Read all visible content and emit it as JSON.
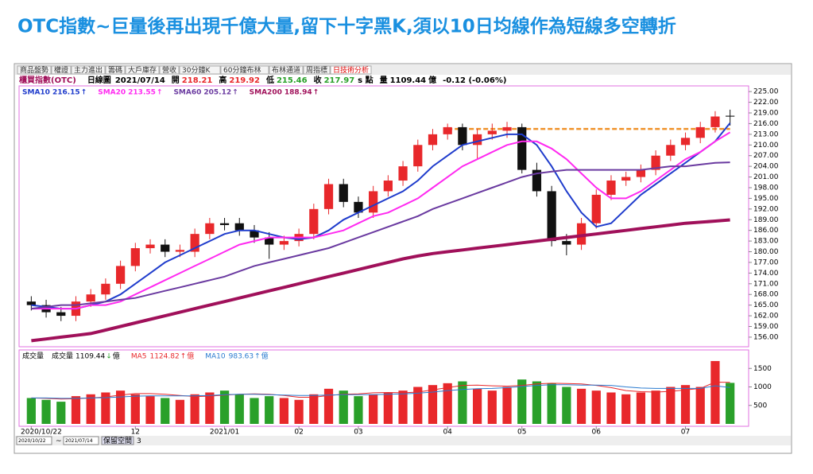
{
  "title": "OTC指數~巨量後再出現千億大量,留下十字黑K,須以10日均線作為短線多空轉折",
  "toolbar": {
    "tabs": [
      "商品盤勢",
      "權證",
      "主力進出",
      "籌碼",
      "大戶庫存",
      "營收",
      "30分鐘K",
      "60分鐘布林",
      "布林通道",
      "周指標",
      "日技術分析"
    ]
  },
  "chart_data": {
    "type": "candlestick",
    "info": {
      "name": "櫃買指數(OTC)",
      "period": "日線圖",
      "date": "2021/07/14",
      "open_label": "開",
      "high_label": "高",
      "low_label": "低",
      "close_label": "收",
      "unit": "s 點",
      "volume_label": "量",
      "volume_unit": "億",
      "change": "-0.12 (-0.06%)"
    },
    "categories": [
      "2020/10/22",
      null,
      null,
      null,
      null,
      null,
      null,
      "12",
      null,
      null,
      null,
      null,
      null,
      "2021/01",
      null,
      null,
      null,
      null,
      "02",
      null,
      null,
      null,
      "03",
      null,
      null,
      null,
      null,
      null,
      "04",
      null,
      null,
      null,
      null,
      "05",
      null,
      null,
      null,
      null,
      "06",
      null,
      null,
      null,
      null,
      null,
      "07",
      null,
      null,
      null
    ],
    "open": [
      166,
      165,
      163,
      162,
      166,
      168,
      171,
      176,
      181,
      182,
      180,
      180,
      185,
      188,
      188,
      186,
      184,
      182,
      183,
      185,
      192,
      199,
      194,
      191,
      197,
      200,
      204,
      210,
      213,
      215,
      210,
      213,
      214,
      215,
      203,
      197,
      183,
      182,
      188,
      196,
      200,
      201,
      203,
      207,
      210,
      212,
      215,
      218.21
    ],
    "high": [
      167.5,
      166.5,
      164.5,
      167.5,
      169.5,
      172.5,
      177.5,
      182.5,
      183.5,
      183.5,
      182,
      186.5,
      189.5,
      189.5,
      189.5,
      187.5,
      185.5,
      184.5,
      186.5,
      193.5,
      200.5,
      200.5,
      195.5,
      198.5,
      201.5,
      205.5,
      211.5,
      214.5,
      216,
      216,
      214.5,
      216,
      216.5,
      216,
      205,
      198.5,
      185,
      189.5,
      197.5,
      201.5,
      202.5,
      204.5,
      208.5,
      211.5,
      213.5,
      216.5,
      219.5,
      219.92
    ],
    "low": [
      163.5,
      161.5,
      160.5,
      160.5,
      164.5,
      166.5,
      169.5,
      174.5,
      179.5,
      178.5,
      178.5,
      178.5,
      183.5,
      186,
      184.5,
      182.5,
      178,
      180.5,
      181.5,
      183.5,
      190.5,
      192.5,
      189.5,
      189.5,
      195.5,
      198.5,
      202.5,
      208.5,
      211.5,
      208.5,
      206,
      211.5,
      212,
      202,
      195.5,
      181.5,
      179,
      180.5,
      186.5,
      194.5,
      198.5,
      199.5,
      201.5,
      205.5,
      208.5,
      210.5,
      213.5,
      215.46
    ],
    "close": [
      165,
      163,
      162,
      166,
      168,
      171,
      176,
      181,
      182,
      180,
      180.5,
      185,
      188,
      187.5,
      186,
      184,
      182,
      183,
      185,
      192,
      199,
      194,
      191,
      197,
      200,
      204,
      210,
      213,
      215,
      210,
      213,
      214,
      215,
      203,
      197,
      183,
      182,
      188,
      196,
      200,
      201,
      203,
      207,
      210,
      212,
      215,
      218,
      217.97
    ],
    "up_color": "#e8282b",
    "down_color": "#111111",
    "ylim": [
      153.3,
      226.6
    ],
    "yticks": [
      {
        "value": 225,
        "label": "225.00"
      },
      {
        "value": 222,
        "label": "222.00"
      },
      {
        "value": 219,
        "label": "219.00"
      },
      {
        "value": 216,
        "label": "216.00"
      },
      {
        "value": 213,
        "label": "213.00"
      },
      {
        "value": 210,
        "label": "210.00"
      },
      {
        "value": 207,
        "label": "207.00"
      },
      {
        "value": 204,
        "label": "204.00"
      },
      {
        "value": 201,
        "label": "201.00"
      },
      {
        "value": 198,
        "label": "198.00"
      },
      {
        "value": 195,
        "label": "195.00"
      },
      {
        "value": 192,
        "label": "192.00"
      },
      {
        "value": 189,
        "label": "189.00"
      },
      {
        "value": 186,
        "label": "186.00"
      },
      {
        "value": 183,
        "label": "183.00"
      },
      {
        "value": 180,
        "label": "180.00"
      },
      {
        "value": 177,
        "label": "177.00"
      },
      {
        "value": 174,
        "label": "174.00"
      },
      {
        "value": 171,
        "label": "171.00"
      },
      {
        "value": 168,
        "label": "168.00"
      },
      {
        "value": 165,
        "label": "165.00"
      },
      {
        "value": 162,
        "label": "162.00"
      },
      {
        "value": 159,
        "label": "159.00"
      },
      {
        "value": 156,
        "label": "156.00"
      }
    ],
    "series": [
      {
        "name": "SMA10",
        "color": "#1f3ccc",
        "arrow": "↑",
        "values": [
          165,
          164.5,
          164,
          164,
          165,
          166,
          168,
          171,
          174,
          177,
          179,
          181,
          183,
          185,
          186,
          186,
          185,
          184,
          183.5,
          184,
          186,
          189,
          191,
          193,
          195,
          197,
          200,
          204,
          207,
          210,
          211,
          212,
          213,
          213,
          210,
          204,
          197,
          191,
          187,
          188,
          192,
          196,
          199,
          202,
          205,
          208,
          211,
          216.15
        ]
      },
      {
        "name": "SMA20",
        "color": "#ff2af0",
        "arrow": "↑",
        "values": [
          164,
          164,
          164,
          164,
          165,
          165,
          166,
          168,
          170,
          172,
          174,
          176,
          178,
          180,
          182,
          183,
          184,
          184,
          184,
          184,
          185,
          186,
          188,
          190,
          191,
          193,
          195,
          198,
          201,
          204,
          206,
          208,
          210,
          211,
          211,
          209,
          206,
          202,
          198,
          195,
          195,
          197,
          200,
          203,
          206,
          208,
          211,
          213.55
        ]
      },
      {
        "name": "SMA60",
        "color": "#6a3aa0",
        "arrow": "↑",
        "values": [
          164,
          164.5,
          165,
          165,
          165.5,
          166,
          166.5,
          167,
          168,
          169,
          170,
          171,
          172,
          173,
          174.5,
          176,
          177,
          178,
          179,
          180,
          181,
          182.5,
          184,
          185.5,
          187,
          188.5,
          190,
          192,
          193.5,
          195,
          196.5,
          198,
          199.5,
          201,
          202,
          202.5,
          203,
          203,
          203,
          203,
          203,
          203,
          203.5,
          204,
          204,
          204.5,
          205,
          205.12
        ]
      },
      {
        "name": "SMA200",
        "color": "#a0105a",
        "arrow": "↑",
        "values": [
          155,
          155.5,
          156,
          156.5,
          157,
          158,
          159,
          160,
          161,
          162,
          163,
          164,
          165,
          166,
          167,
          168,
          169,
          170,
          171,
          172,
          173,
          174,
          175,
          176,
          177,
          178,
          178.8,
          179.5,
          180,
          180.5,
          181,
          181.5,
          182,
          182.5,
          183,
          183.5,
          184,
          184.5,
          185,
          185.5,
          186,
          186.5,
          187,
          187.5,
          188,
          188.3,
          188.6,
          188.94
        ]
      }
    ],
    "resistance": {
      "value": 214.5,
      "from": 28,
      "to": 47,
      "color": "#f0922a"
    },
    "volume": {
      "panel_label": "成交量",
      "name": "成交量",
      "arrow": "↓",
      "unit": "億",
      "up_color": "#e8282b",
      "down_color": "#2aa02a",
      "values": [
        700,
        650,
        600,
        750,
        800,
        850,
        900,
        800,
        750,
        700,
        650,
        800,
        850,
        900,
        800,
        700,
        750,
        700,
        650,
        800,
        950,
        900,
        750,
        800,
        850,
        900,
        1000,
        1050,
        1100,
        1150,
        950,
        900,
        1000,
        1200,
        1150,
        1100,
        1000,
        950,
        900,
        850,
        800,
        850,
        900,
        1000,
        1050,
        1000,
        1700,
        1109.44
      ],
      "ylim": [
        0,
        2000
      ],
      "yticks": [
        500,
        1000,
        1500
      ],
      "series": [
        {
          "name": "MA5",
          "color": "#e8282b",
          "arrow": "↑",
          "values": [
            700,
            690,
            670,
            680,
            700,
            730,
            780,
            820,
            820,
            800,
            770,
            740,
            750,
            780,
            800,
            810,
            800,
            770,
            720,
            720,
            770,
            800,
            810,
            840,
            850,
            840,
            860,
            920,
            980,
            1040,
            1050,
            1030,
            1020,
            1040,
            1080,
            1100,
            1090,
            1080,
            1040,
            980,
            900,
            870,
            860,
            880,
            920,
            960,
            1130,
            1124.82
          ]
        },
        {
          "name": "MA10",
          "color": "#2a7bd0",
          "arrow": "↑",
          "values": [
            700,
            700,
            690,
            690,
            700,
            710,
            730,
            750,
            760,
            760,
            760,
            760,
            770,
            790,
            800,
            800,
            790,
            780,
            770,
            770,
            780,
            790,
            790,
            790,
            800,
            810,
            830,
            860,
            900,
            930,
            950,
            960,
            980,
            1010,
            1040,
            1060,
            1060,
            1050,
            1050,
            1040,
            1000,
            970,
            960,
            960,
            960,
            960,
            1030,
            983.63
          ]
        }
      ]
    }
  },
  "footer": {
    "start": "2020/10/22",
    "sep": "~",
    "end": "2021/07/14",
    "button": "保留空間",
    "num": "3"
  }
}
